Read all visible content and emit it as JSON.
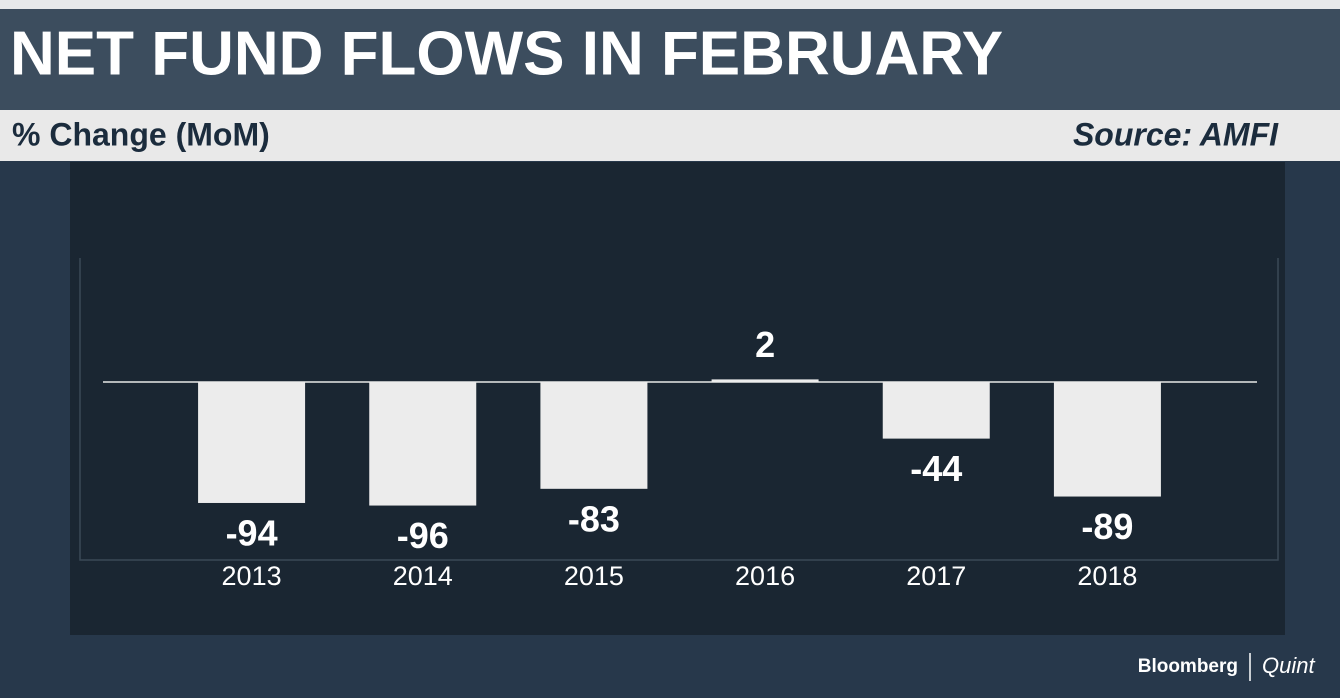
{
  "chart_data": {
    "type": "bar",
    "title": "NET FUND FLOWS IN FEBRUARY",
    "subtitle": "% Change (MoM)",
    "source": "Source: AMFI",
    "categories": [
      "2013",
      "2014",
      "2015",
      "2016",
      "2017",
      "2018"
    ],
    "values": [
      -94,
      -96,
      -83,
      2,
      -44,
      -89
    ],
    "color": "#ececec",
    "ylim": [
      -100,
      10
    ],
    "logo": {
      "left": "Bloomberg",
      "right": "Quint"
    }
  }
}
